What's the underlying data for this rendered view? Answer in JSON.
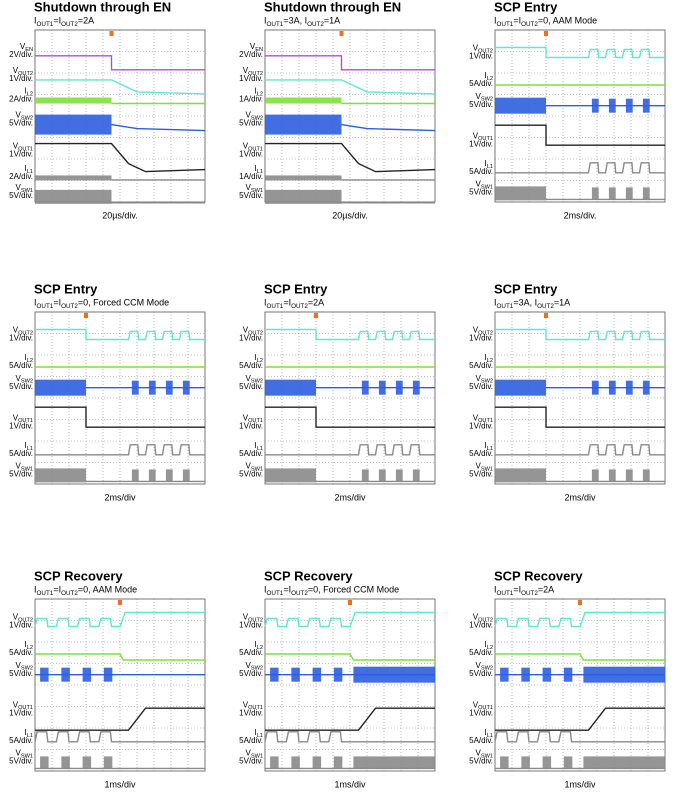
{
  "panels": [
    {
      "title": "Shutdown through EN",
      "conditions": "IOUT1=IOUT2=2A",
      "timebase": "20µs/div.",
      "channels": [
        {
          "name": "VEN",
          "scale": "2V/div."
        },
        {
          "name": "VOUT2",
          "scale": "1V/div."
        },
        {
          "name": "IL2",
          "scale": "2A/div."
        },
        {
          "name": "VSW2",
          "scale": "5V/div."
        },
        {
          "name": "VOUT1",
          "scale": "1V/div."
        },
        {
          "name": "IL1",
          "scale": "2A/div."
        },
        {
          "name": "VSW1",
          "scale": "5V/div."
        }
      ]
    },
    {
      "title": "Shutdown through EN",
      "conditions": "IOUT1=3A, IOUT2=1A",
      "timebase": "20µs/div.",
      "channels": [
        {
          "name": "VEN",
          "scale": "2V/div."
        },
        {
          "name": "VOUT2",
          "scale": "1V/div."
        },
        {
          "name": "IL2",
          "scale": "1A/div."
        },
        {
          "name": "VSW2",
          "scale": "5V/div."
        },
        {
          "name": "VOUT1",
          "scale": "1V/div."
        },
        {
          "name": "IL1",
          "scale": "1A/div."
        },
        {
          "name": "VSW1",
          "scale": "5V/div."
        }
      ]
    },
    {
      "title": "SCP Entry",
      "conditions": "IOUT1=IOUT2=0, AAM Mode",
      "timebase": "2ms/div.",
      "channels": [
        {
          "name": "VOUT2",
          "scale": "1V/div."
        },
        {
          "name": "IL2",
          "scale": "5A/div."
        },
        {
          "name": "VSW2",
          "scale": "5V/div."
        },
        {
          "name": "VOUT1",
          "scale": "1V/div."
        },
        {
          "name": "IL1",
          "scale": "5A/div."
        },
        {
          "name": "VSW1",
          "scale": "5V/div."
        }
      ]
    },
    {
      "title": "SCP Entry",
      "conditions": "IOUT1=IOUT2=0, Forced CCM Mode",
      "timebase": "2ms/div",
      "channels": [
        {
          "name": "VOUT2",
          "scale": "1V/div."
        },
        {
          "name": "IL2",
          "scale": "5A/div."
        },
        {
          "name": "VSW2",
          "scale": "5V/div."
        },
        {
          "name": "VOUT1",
          "scale": "1V/div."
        },
        {
          "name": "IL1",
          "scale": "5A/div."
        },
        {
          "name": "VSW1",
          "scale": "5V/div."
        }
      ]
    },
    {
      "title": "SCP Entry",
      "conditions": "IOUT1=IOUT2=2A",
      "timebase": "2ms/div",
      "channels": [
        {
          "name": "VOUT2",
          "scale": "1V/div."
        },
        {
          "name": "IL2",
          "scale": "5A/div."
        },
        {
          "name": "VSW2",
          "scale": "5V/div."
        },
        {
          "name": "VOUT1",
          "scale": "1V/div."
        },
        {
          "name": "IL1",
          "scale": "5A/div."
        },
        {
          "name": "VSW1",
          "scale": "5V/div."
        }
      ]
    },
    {
      "title": "SCP Entry",
      "conditions": "IOUT1=3A, IOUT2=1A",
      "timebase": "2ms/div",
      "channels": [
        {
          "name": "VOUT2",
          "scale": "1V/div."
        },
        {
          "name": "IL2",
          "scale": "5A/div."
        },
        {
          "name": "VSW2",
          "scale": "5V/div."
        },
        {
          "name": "VOUT1",
          "scale": "1V/div."
        },
        {
          "name": "IL1",
          "scale": "5A/div."
        },
        {
          "name": "VSW1",
          "scale": "5V/div."
        }
      ]
    },
    {
      "title": "SCP Recovery",
      "conditions": "IOUT1=IOUT2=0, AAM Mode",
      "timebase": "1ms/div",
      "channels": [
        {
          "name": "VOUT2",
          "scale": "1V/div."
        },
        {
          "name": "IL2",
          "scale": "5A/div."
        },
        {
          "name": "VSW2",
          "scale": "5V/div."
        },
        {
          "name": "VOUT1",
          "scale": "1V/div."
        },
        {
          "name": "IL1",
          "scale": "5A/div."
        },
        {
          "name": "VSW1",
          "scale": "5V/div."
        }
      ]
    },
    {
      "title": "SCP Recovery",
      "conditions": "IOUT1=IOUT2=0, Forced CCM Mode",
      "timebase": "1ms/div",
      "channels": [
        {
          "name": "VOUT2",
          "scale": "1V/div."
        },
        {
          "name": "IL2",
          "scale": "5A/div."
        },
        {
          "name": "VSW2",
          "scale": "5V/div."
        },
        {
          "name": "VOUT1",
          "scale": "1V/div."
        },
        {
          "name": "IL1",
          "scale": "5A/div."
        },
        {
          "name": "VSW1",
          "scale": "5V/div."
        }
      ]
    },
    {
      "title": "SCP Recovery",
      "conditions": "IOUT1=IOUT2=2A",
      "timebase": "1ms/div",
      "channels": [
        {
          "name": "VOUT2",
          "scale": "1V/div."
        },
        {
          "name": "IL2",
          "scale": "5A/div."
        },
        {
          "name": "VSW2",
          "scale": "5V/div."
        },
        {
          "name": "VOUT1",
          "scale": "1V/div."
        },
        {
          "name": "IL1",
          "scale": "5A/div."
        },
        {
          "name": "VSW1",
          "scale": "5V/div."
        }
      ]
    }
  ]
}
